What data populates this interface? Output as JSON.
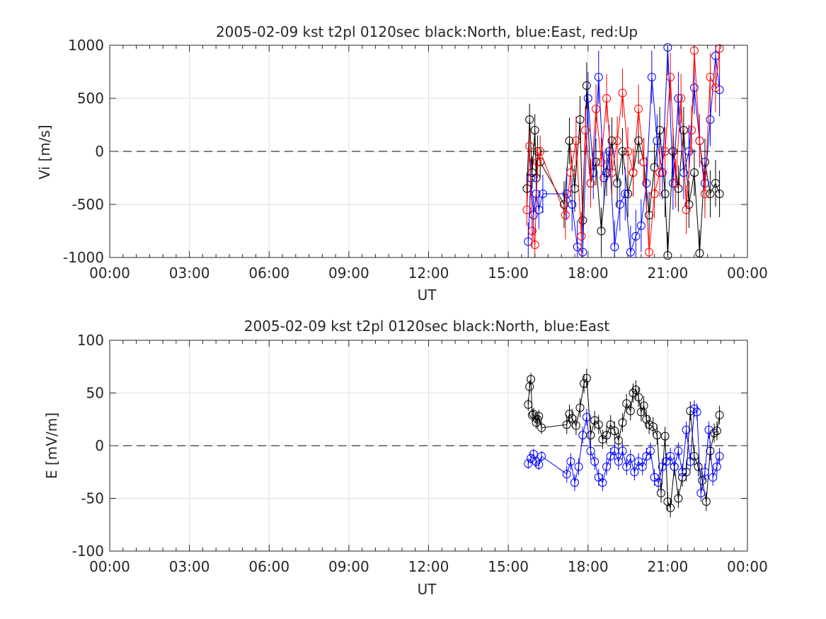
{
  "chart_data": [
    {
      "type": "scatter",
      "title": "2005-02-09 kst t2pl 0120sec black:North, blue:East, red:Up",
      "xlabel": "UT",
      "ylabel": "Vi [m/s]",
      "xlim": [
        0,
        24
      ],
      "ylim": [
        -1000,
        1000
      ],
      "x_tick_labels": [
        "00:00",
        "03:00",
        "06:00",
        "09:00",
        "12:00",
        "15:00",
        "18:00",
        "21:00",
        "00:00"
      ],
      "y_tick_labels": [
        "-1000",
        "-500",
        "0",
        "500",
        "1000"
      ],
      "y_ticks": [
        -1000,
        -500,
        0,
        500,
        1000
      ],
      "grid": true,
      "zero_line": "dashed",
      "series": [
        {
          "name": "North",
          "color": "#000000",
          "x": [
            15.7,
            15.8,
            15.9,
            16.0,
            16.05,
            16.1,
            16.2,
            17.1,
            17.3,
            17.5,
            17.7,
            17.8,
            17.95,
            18.1,
            18.3,
            18.5,
            18.7,
            18.9,
            19.1,
            19.3,
            19.5,
            19.7,
            19.9,
            20.1,
            20.3,
            20.5,
            20.7,
            20.9,
            21.0,
            21.2,
            21.4,
            21.6,
            21.8,
            22.0,
            22.2,
            22.4,
            22.6,
            22.8,
            22.95
          ],
          "y": [
            -350,
            300,
            -200,
            200,
            -250,
            0,
            -100,
            -500,
            100,
            -350,
            300,
            -650,
            620,
            -300,
            -100,
            -750,
            -200,
            100,
            -300,
            0,
            -400,
            -200,
            100,
            -100,
            -600,
            -150,
            200,
            -400,
            -980,
            0,
            -350,
            200,
            -500,
            -200,
            -960,
            -100,
            -400,
            -300,
            -400
          ],
          "err": [
            150,
            150,
            150,
            150,
            150,
            150,
            150,
            220,
            220,
            220,
            220,
            220,
            220,
            220,
            220,
            220,
            220,
            220,
            220,
            220,
            220,
            220,
            220,
            220,
            220,
            220,
            220,
            220,
            220,
            220,
            220,
            220,
            220,
            220,
            220,
            220,
            220,
            220,
            220
          ]
        },
        {
          "name": "East",
          "color": "#0000ff",
          "x": [
            15.75,
            15.85,
            15.95,
            16.05,
            16.15,
            16.3,
            17.2,
            17.4,
            17.6,
            17.8,
            18.0,
            18.2,
            18.4,
            18.6,
            18.8,
            19.0,
            19.2,
            19.4,
            19.6,
            19.8,
            20.0,
            20.2,
            20.4,
            20.6,
            20.8,
            21.0,
            21.2,
            21.4,
            21.6,
            21.8,
            22.0,
            22.2,
            22.4,
            22.6,
            22.8,
            22.95
          ],
          "y": [
            -850,
            -250,
            -600,
            -400,
            -550,
            -400,
            -400,
            -500,
            -900,
            -950,
            500,
            -200,
            700,
            -250,
            0,
            -900,
            -500,
            -400,
            -950,
            -800,
            -700,
            -300,
            700,
            100,
            -200,
            980,
            -300,
            500,
            -200,
            0,
            600,
            100,
            -300,
            300,
            900,
            580
          ],
          "err": [
            180,
            180,
            180,
            180,
            180,
            180,
            250,
            250,
            250,
            250,
            250,
            250,
            250,
            250,
            250,
            250,
            250,
            250,
            250,
            250,
            250,
            250,
            250,
            250,
            250,
            250,
            250,
            250,
            250,
            250,
            250,
            250,
            250,
            250,
            250,
            250
          ]
        },
        {
          "name": "Up",
          "color": "#ff0000",
          "x": [
            15.7,
            15.8,
            15.9,
            16.0,
            16.1,
            16.2,
            17.15,
            17.35,
            17.55,
            17.75,
            17.9,
            18.1,
            18.3,
            18.5,
            18.7,
            18.9,
            19.1,
            19.3,
            19.5,
            19.7,
            19.9,
            20.1,
            20.3,
            20.5,
            20.7,
            20.9,
            21.1,
            21.3,
            21.5,
            21.7,
            21.9,
            22.0,
            22.2,
            22.4,
            22.6,
            22.8,
            22.95
          ],
          "y": [
            -550,
            50,
            -750,
            -880,
            -100,
            0,
            -600,
            -200,
            100,
            -800,
            200,
            -300,
            400,
            -100,
            500,
            -200,
            100,
            550,
            0,
            -200,
            400,
            -100,
            -950,
            -400,
            -200,
            0,
            700,
            -300,
            500,
            -550,
            200,
            950,
            100,
            -400,
            700,
            600,
            970
          ],
          "err": [
            150,
            150,
            150,
            150,
            150,
            150,
            230,
            230,
            230,
            230,
            230,
            230,
            230,
            230,
            230,
            230,
            230,
            230,
            230,
            230,
            230,
            230,
            230,
            230,
            230,
            230,
            230,
            230,
            230,
            230,
            230,
            230,
            230,
            230,
            230,
            230,
            230
          ]
        }
      ]
    },
    {
      "type": "scatter",
      "title": "2005-02-09 kst t2pl 0120sec black:North, blue:East",
      "xlabel": "UT",
      "ylabel": "E [mV/m]",
      "xlim": [
        0,
        24
      ],
      "ylim": [
        -100,
        100
      ],
      "x_tick_labels": [
        "00:00",
        "03:00",
        "06:00",
        "09:00",
        "12:00",
        "15:00",
        "18:00",
        "21:00",
        "00:00"
      ],
      "y_tick_labels": [
        "-100",
        "-50",
        "0",
        "50",
        "100"
      ],
      "y_ticks": [
        -100,
        -50,
        0,
        50,
        100
      ],
      "grid": true,
      "zero_line": "dashed",
      "series": [
        {
          "name": "North",
          "color": "#000000",
          "x": [
            15.75,
            15.8,
            15.85,
            15.9,
            15.95,
            16.05,
            16.1,
            16.15,
            16.25,
            17.2,
            17.3,
            17.4,
            17.55,
            17.7,
            17.85,
            17.95,
            18.1,
            18.25,
            18.4,
            18.55,
            18.7,
            18.85,
            19.0,
            19.15,
            19.3,
            19.45,
            19.6,
            19.7,
            19.8,
            19.9,
            20.0,
            20.1,
            20.2,
            20.3,
            20.45,
            20.6,
            20.75,
            20.9,
            21.0,
            21.1,
            21.25,
            21.4,
            21.55,
            21.7,
            21.85,
            22.0,
            22.15,
            22.3,
            22.45,
            22.6,
            22.75,
            22.85,
            22.95
          ],
          "y": [
            39,
            56,
            63,
            29,
            30,
            22,
            25,
            28,
            17,
            20,
            30,
            26,
            19,
            36,
            59,
            64,
            10,
            24,
            20,
            6,
            10,
            20,
            14,
            5,
            22,
            40,
            33,
            50,
            53,
            46,
            32,
            38,
            25,
            20,
            18,
            10,
            -45,
            9,
            -53,
            -59,
            -20,
            -50,
            -30,
            -25,
            33,
            -10,
            -20,
            -33,
            -53,
            -5,
            12,
            14,
            29
          ],
          "err": [
            6,
            6,
            6,
            6,
            6,
            6,
            6,
            6,
            6,
            9,
            9,
            9,
            9,
            9,
            9,
            9,
            9,
            9,
            9,
            9,
            9,
            9,
            9,
            9,
            9,
            9,
            9,
            9,
            9,
            9,
            9,
            9,
            9,
            9,
            9,
            9,
            9,
            9,
            9,
            9,
            9,
            9,
            9,
            9,
            9,
            9,
            9,
            9,
            9,
            9,
            9,
            9,
            9
          ]
        },
        {
          "name": "East",
          "color": "#0000ff",
          "x": [
            15.75,
            15.85,
            15.95,
            16.05,
            16.15,
            16.25,
            17.2,
            17.35,
            17.5,
            17.65,
            17.8,
            17.95,
            18.1,
            18.25,
            18.4,
            18.55,
            18.7,
            18.85,
            19.0,
            19.15,
            19.3,
            19.45,
            19.6,
            19.75,
            19.9,
            20.05,
            20.2,
            20.35,
            20.5,
            20.65,
            20.8,
            20.95,
            21.1,
            21.25,
            21.4,
            21.55,
            21.7,
            21.85,
            22.0,
            22.1,
            22.25,
            22.4,
            22.55,
            22.7,
            22.85,
            22.95
          ],
          "y": [
            -17,
            -12,
            -8,
            -15,
            -18,
            -10,
            -27,
            -15,
            -35,
            -20,
            10,
            27,
            -5,
            -15,
            -30,
            -35,
            -20,
            -10,
            -5,
            -15,
            -5,
            -20,
            -12,
            -25,
            -15,
            -20,
            -10,
            -5,
            -30,
            -35,
            -20,
            -15,
            -10,
            -20,
            -5,
            -25,
            15,
            -15,
            35,
            32,
            -45,
            -25,
            15,
            -30,
            -20,
            -10
          ],
          "err": [
            5,
            5,
            5,
            5,
            5,
            5,
            8,
            8,
            8,
            8,
            8,
            8,
            8,
            8,
            8,
            8,
            8,
            8,
            8,
            8,
            8,
            8,
            8,
            8,
            8,
            8,
            8,
            8,
            8,
            8,
            8,
            8,
            8,
            8,
            8,
            8,
            8,
            8,
            8,
            8,
            8,
            8,
            8,
            8,
            8,
            8
          ]
        }
      ]
    }
  ]
}
